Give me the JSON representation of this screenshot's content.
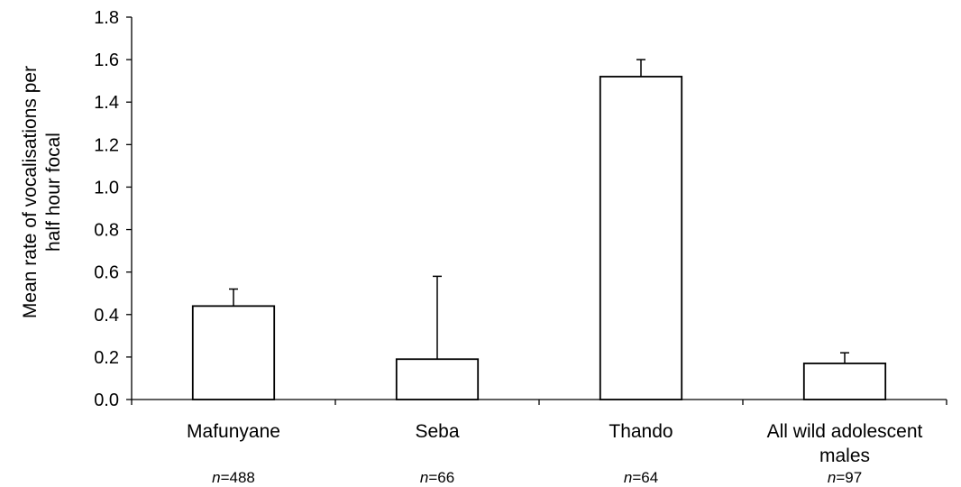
{
  "chart_data": {
    "type": "bar",
    "title": "",
    "ylabel_lines": [
      "Mean rate of vocalisations per",
      "half hour focal"
    ],
    "xlabel": "",
    "ylim": [
      0,
      1.8
    ],
    "yticks": [
      "0.0",
      "0.2",
      "0.4",
      "0.6",
      "0.8",
      "1.0",
      "1.2",
      "1.4",
      "1.6",
      "1.8"
    ],
    "categories": [
      {
        "label_lines": [
          "Mafunyane"
        ],
        "n_prefix": "n",
        "n_value": "=488"
      },
      {
        "label_lines": [
          "Seba"
        ],
        "n_prefix": "n",
        "n_value": "=66"
      },
      {
        "label_lines": [
          "Thando"
        ],
        "n_prefix": "n",
        "n_value": "=64"
      },
      {
        "label_lines": [
          "All wild adolescent",
          "males"
        ],
        "n_prefix": "n",
        "n_value": "=97"
      }
    ],
    "values": [
      0.44,
      0.19,
      1.52,
      0.17
    ],
    "error_upper": [
      0.52,
      0.58,
      1.6,
      0.22
    ],
    "bar_fill": "#ffffff",
    "bar_stroke": "#000000",
    "grid": false,
    "legend": "none"
  }
}
